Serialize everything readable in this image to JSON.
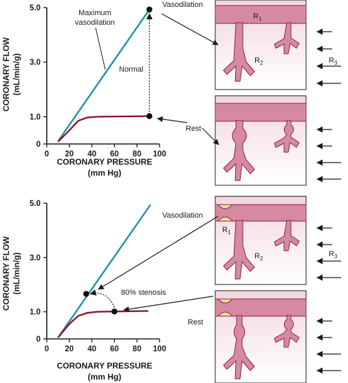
{
  "colors": {
    "vasodilation_line": "#1d8fa3",
    "rest_line": "#8b1538",
    "vessel_fill": "#d68aa2",
    "vessel_stroke": "#8b1f47",
    "tissue_top": "#f3d6de",
    "stenosis_fill": "#f0dc95"
  },
  "top": {
    "labels": {
      "maximum_vasodilation": [
        "Maximum",
        "vasodilation"
      ],
      "normal": "Normal",
      "vasodilation": "Vasodilation",
      "rest": "Rest",
      "r1": "R",
      "r1_sub": "1",
      "r2": "R",
      "r2_sub": "2",
      "r3": "R",
      "r3_sub": "3"
    }
  },
  "bottom": {
    "labels": {
      "stenosis": "80% stenosis",
      "vasodilation": "Vasodilation",
      "rest": "Rest",
      "r1": "R",
      "r1_sub": "1",
      "r2": "R",
      "r2_sub": "2",
      "r3": "R",
      "r3_sub": "3"
    }
  },
  "chart_data": [
    {
      "type": "line",
      "xlabel": "CORONARY PRESSURE",
      "xunit": "(mm Hg)",
      "ylabel": "CORONARY FLOW",
      "yunit": "(mL/min/g)",
      "xticks": [
        "0",
        "20",
        "40",
        "60",
        "80",
        "100"
      ],
      "yticks": [
        "0",
        "1.0",
        "3.0",
        "5.0"
      ],
      "xlim": [
        0,
        100
      ],
      "ylim": [
        0,
        5
      ],
      "series": [
        {
          "role": "vasodilation",
          "points": [
            [
              10,
              0.1
            ],
            [
              91,
              4.93
            ]
          ]
        },
        {
          "role": "rest",
          "points": [
            [
              10,
              0.08
            ],
            [
              20,
              0.5
            ],
            [
              28,
              0.85
            ],
            [
              36,
              0.97
            ],
            [
              45,
              1.0
            ],
            [
              91,
              1.02
            ]
          ]
        }
      ],
      "markers": [
        [
          91,
          4.93
        ],
        [
          91,
          1.02
        ]
      ]
    },
    {
      "type": "line",
      "xlabel": "CORONARY PRESSURE",
      "xunit": "(mm Hg)",
      "ylabel": "CORONARY FLOW",
      "yunit": "(mL/min/g)",
      "xticks": [
        "0",
        "20",
        "40",
        "60",
        "80",
        "100"
      ],
      "yticks": [
        "0",
        "1.0",
        "3.0",
        "5.0"
      ],
      "xlim": [
        0,
        100
      ],
      "ylim": [
        0,
        5
      ],
      "series": [
        {
          "role": "vasodilation",
          "points": [
            [
              10,
              0.05
            ],
            [
              92,
              4.95
            ]
          ]
        },
        {
          "role": "rest",
          "points": [
            [
              10,
              0.05
            ],
            [
              20,
              0.55
            ],
            [
              28,
              0.85
            ],
            [
              36,
              0.96
            ],
            [
              45,
              1.0
            ],
            [
              90,
              1.03
            ]
          ]
        }
      ],
      "markers": [
        [
          35,
          1.66
        ],
        [
          60,
          1.01
        ]
      ]
    }
  ]
}
